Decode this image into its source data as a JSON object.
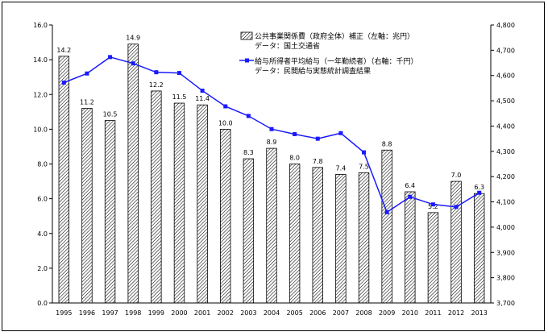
{
  "chart_data": {
    "type": "bar+line",
    "categories": [
      "1995",
      "1996",
      "1997",
      "1998",
      "1999",
      "2000",
      "2001",
      "2002",
      "2003",
      "2004",
      "2005",
      "2006",
      "2007",
      "2008",
      "2009",
      "2010",
      "2011",
      "2012",
      "2013"
    ],
    "series": [
      {
        "name": "公共事業関係費（政府全体）補正（左軸：兆円）",
        "type": "bar",
        "axis": "left",
        "values": [
          14.2,
          11.2,
          10.5,
          14.9,
          12.2,
          11.5,
          11.4,
          10.0,
          8.3,
          8.9,
          8.0,
          7.8,
          7.4,
          7.5,
          8.8,
          6.4,
          5.2,
          7.0,
          6.3
        ],
        "labels": [
          "14.2",
          "11.2",
          "10.5",
          "14.9",
          "12.2",
          "11.5",
          "11.4",
          "10.0",
          "8.3",
          "8.9",
          "8.0",
          "7.8",
          "7.4",
          "7.5",
          "8.8",
          "6.4",
          "5.2",
          "7.0",
          "6.3"
        ]
      },
      {
        "name": "給与所得者平均給与（一年勤続者）（右軸：千円）",
        "type": "line",
        "axis": "right",
        "color": "#1a1aff",
        "values": [
          4572,
          4608,
          4673,
          4648,
          4613,
          4610,
          4540,
          4478,
          4440,
          4388,
          4368,
          4350,
          4372,
          4296,
          4059,
          4120,
          4090,
          4080,
          4136
        ]
      }
    ],
    "legend": [
      {
        "label": "公共事業関係費（政府全体）補正（左軸：兆円）",
        "source": "データ：国土交通省"
      },
      {
        "label": "給与所得者平均給与（一年勤続者）（右軸：千円）",
        "source": "データ：民間給与実態統計調査結果"
      }
    ],
    "left_axis": {
      "min": 0,
      "max": 16,
      "ticks": [
        "0.0",
        "2.0",
        "4.0",
        "6.0",
        "8.0",
        "10.0",
        "12.0",
        "14.0",
        "16.0"
      ]
    },
    "right_axis": {
      "min": 3700,
      "max": 4800,
      "ticks": [
        "3,700",
        "3,800",
        "3,900",
        "4,000",
        "4,100",
        "4,200",
        "4,300",
        "4,400",
        "4,500",
        "4,600",
        "4,700",
        "4,800"
      ]
    },
    "grid": false,
    "legend_position": "top-right"
  }
}
